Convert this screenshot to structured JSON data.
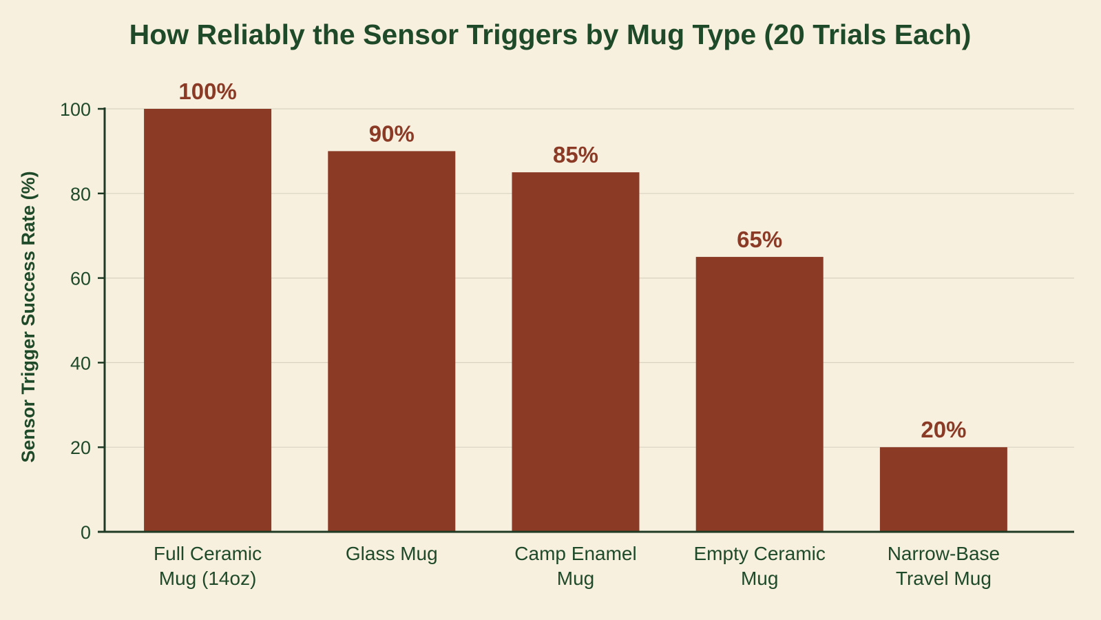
{
  "chart_data": {
    "type": "bar",
    "title": "How Reliably the Sensor Triggers by Mug Type (20 Trials Each)",
    "xlabel": "",
    "ylabel": "Sensor Trigger Success Rate (%)",
    "ylim": [
      0,
      100
    ],
    "yticks": [
      0,
      20,
      40,
      60,
      80,
      100
    ],
    "categories": [
      [
        "Full Ceramic",
        "Mug (14oz)"
      ],
      [
        "Glass Mug"
      ],
      [
        "Camp Enamel",
        "Mug"
      ],
      [
        "Empty Ceramic",
        "Mug"
      ],
      [
        "Narrow-Base",
        "Travel Mug"
      ]
    ],
    "values": [
      100,
      90,
      85,
      65,
      20
    ],
    "data_labels": [
      "100%",
      "90%",
      "85%",
      "65%",
      "20%"
    ],
    "grid": true,
    "legend": "none",
    "colors": {
      "bar": "#8b3a26",
      "text": "#1f4a2a",
      "background": "#f7f0df",
      "grid": "#d9d2c0"
    }
  }
}
